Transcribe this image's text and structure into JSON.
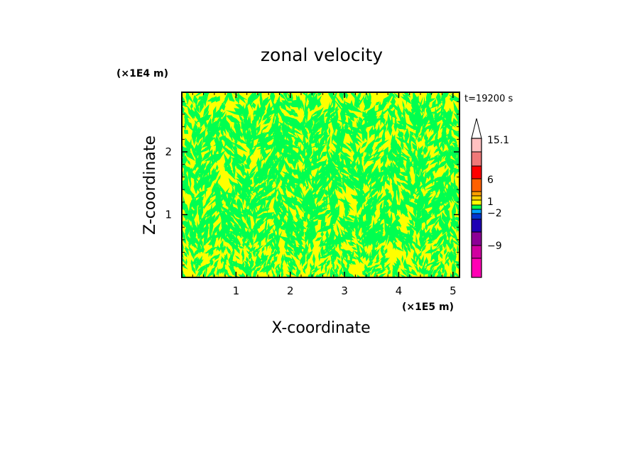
{
  "chart_data": {
    "type": "heatmap",
    "title": "zonal velocity",
    "xlabel": "X-coordinate",
    "ylabel": "Z-coordinate",
    "x_unit": "(×1E5 m)",
    "y_unit": "(×1E4 m)",
    "time_label": "t=19200 s",
    "xlim": [
      0,
      5.12
    ],
    "ylim": [
      0,
      2.95
    ],
    "x_ticks": [
      1,
      2,
      3,
      4,
      5
    ],
    "y_ticks": [
      1,
      2
    ],
    "field_colors": {
      "dominant_positive": "#ffff00",
      "dominant_negative": "#00ff50"
    },
    "colorbar": {
      "extend": "max",
      "labels": [
        "15.1",
        "6",
        "1",
        "−2",
        "−9"
      ],
      "label_values": [
        15.1,
        6,
        1,
        -2,
        -9
      ],
      "colors": [
        "#ff00b4",
        "#d000a0",
        "#8c0096",
        "#1e00b4",
        "#0036d0",
        "#00a0ff",
        "#00ff50",
        "#ffff00",
        "#ffd000",
        "#ffa000",
        "#ff6000",
        "#ff0000",
        "#f07878",
        "#ffc0c0"
      ]
    }
  }
}
